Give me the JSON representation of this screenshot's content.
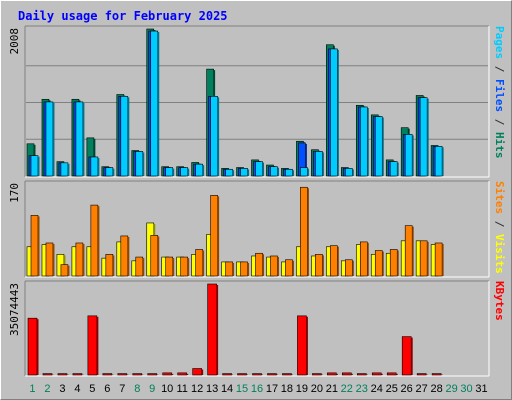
{
  "chart_data": {
    "type": "bar",
    "title": "Daily usage for February 2025",
    "categories": [
      "1",
      "2",
      "3",
      "4",
      "5",
      "6",
      "7",
      "8",
      "9",
      "10",
      "11",
      "12",
      "13",
      "14",
      "15",
      "16",
      "17",
      "18",
      "19",
      "20",
      "21",
      "22",
      "23",
      "24",
      "25",
      "26",
      "27",
      "28",
      "29",
      "30",
      "31"
    ],
    "weekend_days": [
      1,
      2,
      8,
      9,
      15,
      16,
      22,
      23,
      29,
      30
    ],
    "panels": [
      {
        "name": "traffic",
        "ymax": 2008,
        "ymax_label": "2008",
        "ylabel_parts": [
          {
            "text": "Pages",
            "color": "#00ccff"
          },
          {
            "text": " / ",
            "color": "#333333"
          },
          {
            "text": "Files",
            "color": "#0050ff"
          },
          {
            "text": " / ",
            "color": "#333333"
          },
          {
            "text": "Hits",
            "color": "#00805c"
          }
        ],
        "series": [
          {
            "name": "Hits",
            "color": "#00805c",
            "values": [
              440,
              1048,
              196,
              1048,
              521,
              127,
              1113,
              348,
              2008,
              127,
              127,
              185,
              1460,
              104,
              116,
              220,
              150,
              104,
              475,
              359,
              1793,
              116,
              966,
              835,
              220,
              660,
              1100,
              417,
              0,
              0,
              0
            ]
          },
          {
            "name": "Files",
            "color": "#0050ff",
            "values": [
              278,
              1012,
              180,
              1012,
              260,
              115,
              1088,
              336,
              1980,
              115,
              115,
              162,
              1088,
              92,
              104,
              197,
              127,
              92,
              452,
              336,
              1736,
              104,
              943,
              812,
              197,
              568,
              1070,
              405,
              0,
              0,
              0
            ]
          },
          {
            "name": "Pages",
            "color": "#00ccff",
            "values": [
              278,
              1012,
              180,
              1012,
              260,
              115,
              1088,
              336,
              1980,
              115,
              115,
              162,
              1088,
              92,
              104,
              197,
              127,
              92,
              115,
              336,
              1736,
              104,
              943,
              812,
              197,
              568,
              1070,
              405,
              0,
              0,
              0
            ]
          }
        ]
      },
      {
        "name": "sites-visits",
        "ymax": 170,
        "ymax_label": "170",
        "ylabel_parts": [
          {
            "text": "Sites",
            "color": "#ff8000"
          },
          {
            "text": " / ",
            "color": "#333333"
          },
          {
            "text": "Visits",
            "color": "#ffff00"
          }
        ],
        "series": [
          {
            "name": "Visits",
            "color": "#ffff00",
            "values": [
              54,
              58,
              40,
              54,
              54,
              33,
              63,
              28,
              98,
              35,
              35,
              40,
              77,
              26,
              26,
              37,
              35,
              26,
              54,
              37,
              54,
              28,
              58,
              40,
              42,
              65,
              65,
              58,
              0,
              0,
              0
            ]
          },
          {
            "name": "Sites",
            "color": "#ff8000",
            "values": [
              112,
              61,
              21,
              61,
              131,
              40,
              74,
              35,
              75,
              35,
              35,
              49,
              149,
              26,
              26,
              42,
              37,
              30,
              164,
              40,
              56,
              30,
              63,
              47,
              49,
              93,
              65,
              61,
              0,
              0,
              0
            ]
          }
        ]
      },
      {
        "name": "kbytes",
        "ymax": 35074443,
        "ymax_label": "35074443",
        "ylabel_parts": [
          {
            "text": "KBytes",
            "color": "#ff0000"
          }
        ],
        "series": [
          {
            "name": "KBytes",
            "color": "#ff0000",
            "values": [
              21900000,
              550000,
              550000,
              550000,
              22800000,
              550000,
              550000,
              550000,
              550000,
              825000,
              825000,
              2500000,
              35074443,
              550000,
              550000,
              550000,
              550000,
              550000,
              22800000,
              550000,
              825000,
              825000,
              550000,
              825000,
              825000,
              14800000,
              550000,
              550000,
              0,
              0,
              0
            ]
          }
        ]
      }
    ],
    "colors": {
      "title": "#0000ff",
      "weekday": "#000000",
      "weekend": "#00805c",
      "plot_bg": "#c0c0c0",
      "gridline": "#808080"
    }
  }
}
